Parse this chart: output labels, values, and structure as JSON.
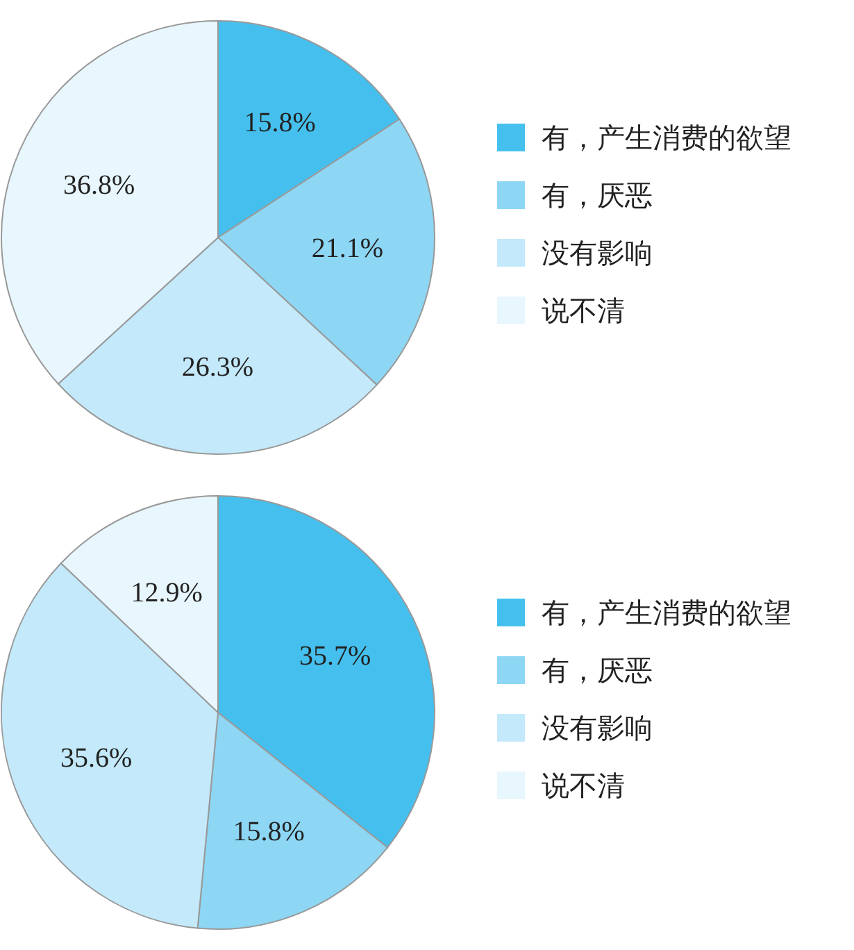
{
  "chart_data": [
    {
      "type": "pie",
      "categories": [
        "有，产生消费的欲望",
        "有，厌恶",
        "没有影响",
        "说不清"
      ],
      "values": [
        15.8,
        21.1,
        26.3,
        36.8
      ],
      "value_labels": [
        "15.8%",
        "21.1%",
        "26.3%",
        "36.8%"
      ],
      "colors": [
        "#45c0ee",
        "#8dd6f4",
        "#c3e9fa",
        "#e8f6fd"
      ],
      "legend": "right"
    },
    {
      "type": "pie",
      "categories": [
        "有，产生消费的欲望",
        "有，厌恶",
        "没有影响",
        "说不清"
      ],
      "values": [
        35.7,
        15.8,
        35.6,
        12.9
      ],
      "value_labels": [
        "35.7%",
        "15.8%",
        "35.6%",
        "12.9%"
      ],
      "colors": [
        "#45c0ee",
        "#8dd6f4",
        "#c3e9fa",
        "#e8f6fd"
      ],
      "legend": "right"
    }
  ]
}
